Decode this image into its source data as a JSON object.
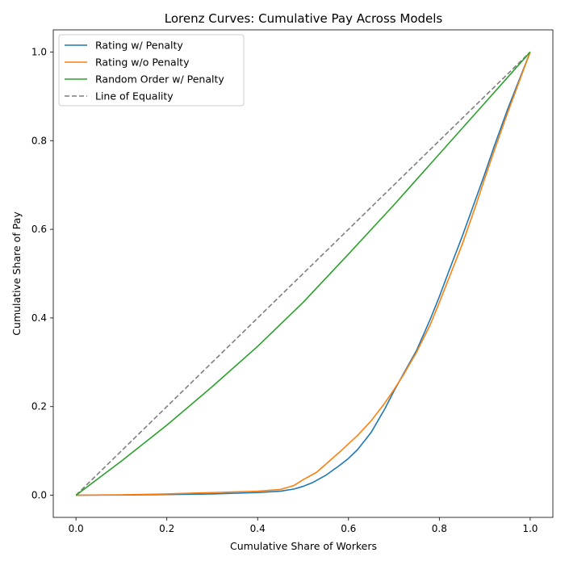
{
  "chart_data": {
    "type": "line",
    "title": "Lorenz Curves: Cumulative Pay Across Models",
    "xlabel": "Cumulative Share of Workers",
    "ylabel": "Cumulative Share of Pay",
    "xlim": [
      -0.05,
      1.05
    ],
    "ylim": [
      -0.05,
      1.05
    ],
    "xticks": [
      0.0,
      0.2,
      0.4,
      0.6,
      0.8,
      1.0
    ],
    "yticks": [
      0.0,
      0.2,
      0.4,
      0.6,
      0.8,
      1.0
    ],
    "xtick_labels": [
      "0.0",
      "0.2",
      "0.4",
      "0.6",
      "0.8",
      "1.0"
    ],
    "ytick_labels": [
      "0.0",
      "0.2",
      "0.4",
      "0.6",
      "0.8",
      "1.0"
    ],
    "grid": false,
    "legend_position": "top-left",
    "series": [
      {
        "name": "Rating w/ Penalty",
        "color": "#1f77b4",
        "style": "solid",
        "x": [
          0.0,
          0.1,
          0.2,
          0.3,
          0.4,
          0.45,
          0.48,
          0.5,
          0.52,
          0.55,
          0.58,
          0.6,
          0.62,
          0.65,
          0.68,
          0.7,
          0.72,
          0.75,
          0.78,
          0.8,
          0.82,
          0.85,
          0.88,
          0.9,
          0.92,
          0.95,
          0.98,
          1.0
        ],
        "y": [
          0.0,
          0.0005,
          0.0015,
          0.003,
          0.006,
          0.009,
          0.014,
          0.02,
          0.028,
          0.045,
          0.067,
          0.083,
          0.103,
          0.142,
          0.195,
          0.235,
          0.272,
          0.327,
          0.397,
          0.448,
          0.503,
          0.583,
          0.668,
          0.725,
          0.785,
          0.87,
          0.948,
          1.0
        ]
      },
      {
        "name": "Rating w/o Penalty",
        "color": "#ff7f0e",
        "style": "solid",
        "x": [
          0.0,
          0.1,
          0.2,
          0.3,
          0.4,
          0.45,
          0.48,
          0.5,
          0.53,
          0.55,
          0.58,
          0.6,
          0.62,
          0.65,
          0.68,
          0.7,
          0.72,
          0.75,
          0.78,
          0.8,
          0.82,
          0.85,
          0.88,
          0.9,
          0.92,
          0.95,
          0.98,
          1.0
        ],
        "y": [
          0.0,
          0.001,
          0.003,
          0.006,
          0.009,
          0.013,
          0.022,
          0.035,
          0.052,
          0.07,
          0.097,
          0.116,
          0.135,
          0.168,
          0.208,
          0.238,
          0.27,
          0.323,
          0.385,
          0.435,
          0.487,
          0.565,
          0.653,
          0.715,
          0.775,
          0.862,
          0.945,
          1.0
        ]
      },
      {
        "name": "Random Order w/ Penalty",
        "color": "#2ca02c",
        "style": "solid",
        "x": [
          0.0,
          0.1,
          0.2,
          0.3,
          0.4,
          0.5,
          0.6,
          0.7,
          0.8,
          0.9,
          1.0
        ],
        "y": [
          0.0,
          0.077,
          0.158,
          0.245,
          0.336,
          0.435,
          0.544,
          0.655,
          0.77,
          0.885,
          1.0
        ]
      },
      {
        "name": "Line of Equality",
        "color": "#7f7f7f",
        "style": "dashed",
        "x": [
          0.0,
          1.0
        ],
        "y": [
          0.0,
          1.0
        ]
      }
    ]
  }
}
